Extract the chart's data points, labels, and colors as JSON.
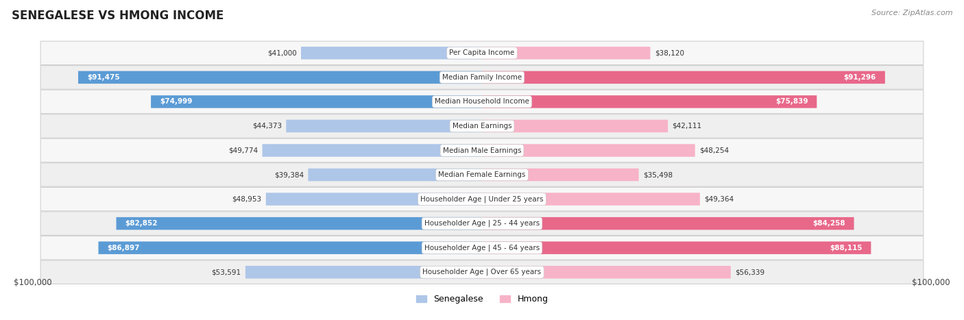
{
  "title": "SENEGALESE VS HMONG INCOME",
  "source": "Source: ZipAtlas.com",
  "categories": [
    "Per Capita Income",
    "Median Family Income",
    "Median Household Income",
    "Median Earnings",
    "Median Male Earnings",
    "Median Female Earnings",
    "Householder Age | Under 25 years",
    "Householder Age | 25 - 44 years",
    "Householder Age | 45 - 64 years",
    "Householder Age | Over 65 years"
  ],
  "senegalese_values": [
    41000,
    91475,
    74999,
    44373,
    49774,
    39384,
    48953,
    82852,
    86897,
    53591
  ],
  "hmong_values": [
    38120,
    91296,
    75839,
    42111,
    48254,
    35498,
    49364,
    84258,
    88115,
    56339
  ],
  "senegalese_labels": [
    "$41,000",
    "$91,475",
    "$74,999",
    "$44,373",
    "$49,774",
    "$39,384",
    "$48,953",
    "$82,852",
    "$86,897",
    "$53,591"
  ],
  "hmong_labels": [
    "$38,120",
    "$91,296",
    "$75,839",
    "$42,111",
    "$48,254",
    "$35,498",
    "$49,364",
    "$84,258",
    "$88,115",
    "$56,339"
  ],
  "max_value": 100000,
  "sen_light_color": "#aec6e8",
  "sen_dark_color": "#5b9bd5",
  "hmong_light_color": "#f7b3c8",
  "hmong_dark_color": "#e8688a",
  "label_inside_threshold": 60000,
  "row_colors": [
    "#f7f7f7",
    "#efefef"
  ],
  "background_color": "#ffffff",
  "xlabel_left": "$100,000",
  "xlabel_right": "$100,000"
}
